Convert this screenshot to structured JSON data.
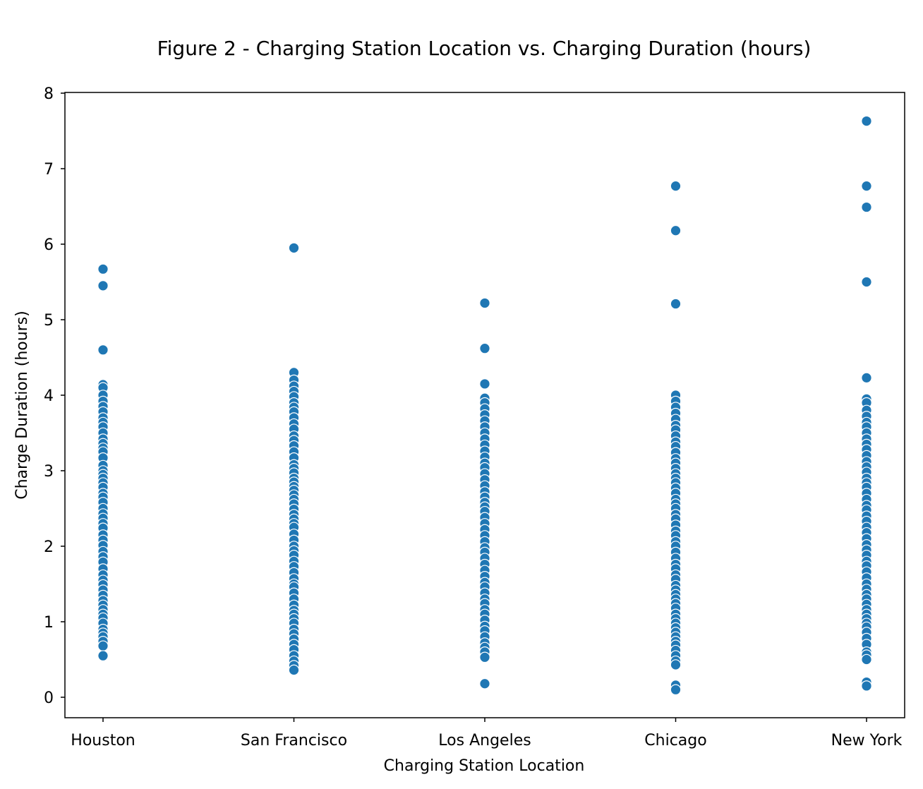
{
  "chart_data": {
    "type": "scatter",
    "title": "Figure 2 - Charging Station Location vs. Charging Duration (hours)",
    "xlabel": "Charging Station Location",
    "ylabel": "Charge Duration (hours)",
    "categories": [
      "Houston",
      "San Francisco",
      "Los Angeles",
      "Chicago",
      "New York"
    ],
    "yticks": [
      0,
      1,
      2,
      3,
      4,
      5,
      6,
      7,
      8
    ],
    "ylim": [
      -0.28,
      8.0
    ],
    "grid": false,
    "marker_color": "#1f77b4",
    "series": [
      {
        "category": "Houston",
        "values": [
          5.67,
          5.45,
          4.6,
          4.14,
          4.1,
          4.0,
          3.92,
          3.85,
          3.78,
          3.7,
          3.64,
          3.58,
          3.5,
          3.42,
          3.36,
          3.3,
          3.25,
          3.17,
          3.07,
          3.0,
          2.95,
          2.9,
          2.84,
          2.78,
          2.7,
          2.65,
          2.58,
          2.5,
          2.43,
          2.37,
          2.3,
          2.24,
          2.15,
          2.08,
          2.01,
          1.93,
          1.86,
          1.79,
          1.7,
          1.62,
          1.55,
          1.49,
          1.42,
          1.35,
          1.28,
          1.22,
          1.16,
          1.1,
          1.05,
          0.98,
          0.9,
          0.85,
          0.8,
          0.74,
          0.68,
          0.55
        ]
      },
      {
        "category": "San Francisco",
        "values": [
          5.95,
          4.3,
          4.2,
          4.12,
          4.05,
          3.98,
          3.9,
          3.84,
          3.78,
          3.7,
          3.62,
          3.55,
          3.46,
          3.4,
          3.33,
          3.25,
          3.17,
          3.08,
          3.03,
          2.97,
          2.9,
          2.85,
          2.79,
          2.74,
          2.68,
          2.62,
          2.56,
          2.49,
          2.42,
          2.36,
          2.3,
          2.25,
          2.16,
          2.08,
          2.0,
          1.94,
          1.88,
          1.8,
          1.73,
          1.65,
          1.57,
          1.5,
          1.46,
          1.38,
          1.3,
          1.22,
          1.15,
          1.1,
          1.04,
          0.98,
          0.9,
          0.84,
          0.77,
          0.7,
          0.63,
          0.55,
          0.48,
          0.42,
          0.36
        ]
      },
      {
        "category": "Los Angeles",
        "values": [
          5.22,
          4.62,
          4.15,
          3.96,
          3.9,
          3.82,
          3.74,
          3.66,
          3.58,
          3.5,
          3.42,
          3.34,
          3.26,
          3.18,
          3.1,
          3.04,
          2.96,
          2.88,
          2.8,
          2.72,
          2.65,
          2.58,
          2.52,
          2.46,
          2.38,
          2.3,
          2.22,
          2.14,
          2.06,
          1.98,
          1.92,
          1.84,
          1.76,
          1.68,
          1.6,
          1.52,
          1.46,
          1.38,
          1.3,
          1.24,
          1.16,
          1.1,
          1.02,
          0.94,
          0.88,
          0.8,
          0.72,
          0.66,
          0.6,
          0.53,
          0.18
        ]
      },
      {
        "category": "Chicago",
        "values": [
          6.77,
          6.18,
          5.21,
          4.0,
          3.92,
          3.84,
          3.76,
          3.68,
          3.6,
          3.54,
          3.46,
          3.38,
          3.32,
          3.24,
          3.16,
          3.1,
          3.03,
          2.96,
          2.9,
          2.84,
          2.77,
          2.7,
          2.62,
          2.56,
          2.5,
          2.42,
          2.36,
          2.28,
          2.2,
          2.14,
          2.06,
          2.0,
          1.92,
          1.84,
          1.76,
          1.7,
          1.62,
          1.56,
          1.48,
          1.42,
          1.36,
          1.3,
          1.24,
          1.18,
          1.1,
          1.04,
          0.98,
          0.92,
          0.86,
          0.8,
          0.74,
          0.69,
          0.62,
          0.55,
          0.48,
          0.43,
          0.16,
          0.1
        ]
      },
      {
        "category": "New York",
        "values": [
          7.63,
          6.77,
          6.49,
          5.5,
          4.23,
          3.95,
          3.9,
          3.8,
          3.72,
          3.64,
          3.58,
          3.5,
          3.42,
          3.35,
          3.28,
          3.2,
          3.12,
          3.05,
          2.98,
          2.9,
          2.84,
          2.78,
          2.7,
          2.62,
          2.54,
          2.48,
          2.4,
          2.33,
          2.25,
          2.18,
          2.1,
          2.02,
          1.95,
          1.88,
          1.8,
          1.74,
          1.66,
          1.58,
          1.5,
          1.43,
          1.36,
          1.3,
          1.23,
          1.16,
          1.1,
          1.04,
          0.98,
          0.93,
          0.86,
          0.78,
          0.7,
          0.6,
          0.56,
          0.5,
          0.2,
          0.15
        ]
      }
    ]
  }
}
